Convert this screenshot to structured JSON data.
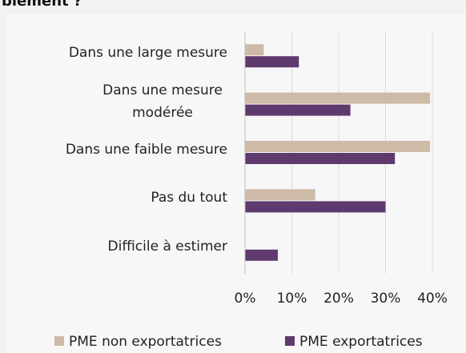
{
  "chart_data": {
    "type": "bar",
    "orientation": "horizontal",
    "title": "blement ?",
    "categories": [
      "Dans une large mesure",
      "Dans une mesure modérée",
      "Dans une faible mesure",
      "Pas du tout",
      "Difficile à estimer"
    ],
    "series": [
      {
        "name": "PME non exportatrices",
        "color": "#cdbba7",
        "values": [
          4,
          39.5,
          39.5,
          15,
          0
        ]
      },
      {
        "name": "PME exportatrices",
        "color": "#5e3a6e",
        "values": [
          11.5,
          22.5,
          32,
          30,
          7
        ]
      }
    ],
    "xlim": [
      0,
      40
    ],
    "xticks": [
      {
        "value": 0,
        "label": "0%"
      },
      {
        "value": 10,
        "label": "10%"
      },
      {
        "value": 20,
        "label": "20%"
      },
      {
        "value": 30,
        "label": "30%"
      },
      {
        "value": 40,
        "label": "40%"
      }
    ],
    "grid": true,
    "legend": "bottom"
  }
}
